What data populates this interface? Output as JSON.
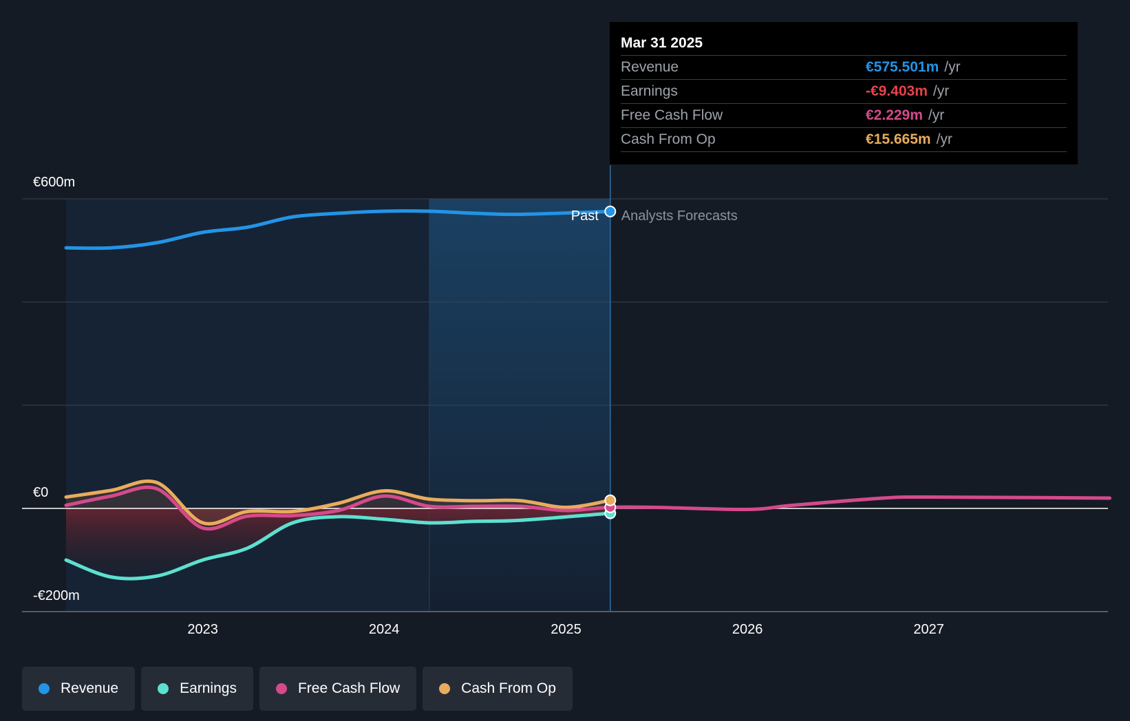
{
  "chart_data": {
    "type": "line",
    "x_range": [
      "2022-04-01",
      "2027-12-31"
    ],
    "x_ticks": [
      "2023",
      "2024",
      "2025",
      "2026",
      "2027"
    ],
    "y_range": [
      -200,
      600
    ],
    "y_ticks": [
      "€600m",
      "€0",
      "-€200m"
    ],
    "y_unit": "€m",
    "divider_date": "2025-03-31",
    "past_label": "Past",
    "forecast_label": "Analysts Forecasts",
    "series": [
      {
        "name": "Revenue",
        "color": "#2394e6",
        "points": [
          [
            "2022-04-01",
            505
          ],
          [
            "2022-07-01",
            505
          ],
          [
            "2022-10-01",
            515
          ],
          [
            "2023-01-01",
            535
          ],
          [
            "2023-04-01",
            545
          ],
          [
            "2023-07-01",
            565
          ],
          [
            "2023-10-01",
            572
          ],
          [
            "2024-01-01",
            576
          ],
          [
            "2024-04-01",
            576
          ],
          [
            "2024-07-01",
            572
          ],
          [
            "2024-10-01",
            570
          ],
          [
            "2025-03-31",
            575.501
          ]
        ]
      },
      {
        "name": "Earnings",
        "color": "#5de0d0",
        "points": [
          [
            "2022-04-01",
            -100
          ],
          [
            "2022-07-01",
            -133
          ],
          [
            "2022-10-01",
            -131
          ],
          [
            "2023-01-01",
            -100
          ],
          [
            "2023-04-01",
            -77
          ],
          [
            "2023-07-01",
            -28
          ],
          [
            "2023-10-01",
            -16
          ],
          [
            "2024-01-01",
            -21
          ],
          [
            "2024-04-01",
            -28
          ],
          [
            "2024-07-01",
            -25
          ],
          [
            "2024-10-01",
            -23
          ],
          [
            "2025-03-31",
            -9.403
          ]
        ]
      },
      {
        "name": "Free Cash Flow",
        "color": "#d44a8c",
        "points": [
          [
            "2022-04-01",
            6
          ],
          [
            "2022-07-01",
            24
          ],
          [
            "2022-10-01",
            38
          ],
          [
            "2023-01-01",
            -38
          ],
          [
            "2023-04-01",
            -15
          ],
          [
            "2023-07-01",
            -14
          ],
          [
            "2023-10-01",
            -4
          ],
          [
            "2024-01-01",
            24
          ],
          [
            "2024-04-01",
            4
          ],
          [
            "2024-07-01",
            4
          ],
          [
            "2024-10-01",
            4
          ],
          [
            "2025-01-01",
            -4
          ],
          [
            "2025-03-31",
            2.229
          ],
          [
            "2025-07-01",
            2
          ],
          [
            "2026-01-01",
            -2
          ],
          [
            "2026-04-01",
            6
          ],
          [
            "2026-10-01",
            20
          ],
          [
            "2027-01-01",
            22
          ],
          [
            "2027-12-31",
            20
          ]
        ]
      },
      {
        "name": "Cash From Op",
        "color": "#e8ac5c",
        "points": [
          [
            "2022-04-01",
            22
          ],
          [
            "2022-07-01",
            35
          ],
          [
            "2022-10-01",
            50
          ],
          [
            "2023-01-01",
            -28
          ],
          [
            "2023-04-01",
            -6
          ],
          [
            "2023-07-01",
            -6
          ],
          [
            "2023-10-01",
            10
          ],
          [
            "2024-01-01",
            34
          ],
          [
            "2024-04-01",
            18
          ],
          [
            "2024-07-01",
            15
          ],
          [
            "2024-10-01",
            15
          ],
          [
            "2025-01-01",
            2
          ],
          [
            "2025-03-31",
            15.665
          ]
        ]
      }
    ]
  },
  "tooltip": {
    "date": "Mar 31 2025",
    "rows": [
      {
        "label": "Revenue",
        "value": "€575.501m",
        "unit": "/yr",
        "color": "#2394e6"
      },
      {
        "label": "Earnings",
        "value": "-€9.403m",
        "unit": "/yr",
        "color": "#e8424c"
      },
      {
        "label": "Free Cash Flow",
        "value": "€2.229m",
        "unit": "/yr",
        "color": "#d44a8c"
      },
      {
        "label": "Cash From Op",
        "value": "€15.665m",
        "unit": "/yr",
        "color": "#e8ac5c"
      }
    ]
  },
  "legend": [
    {
      "label": "Revenue",
      "color": "#2394e6"
    },
    {
      "label": "Earnings",
      "color": "#5de0d0"
    },
    {
      "label": "Free Cash Flow",
      "color": "#d44a8c"
    },
    {
      "label": "Cash From Op",
      "color": "#e8ac5c"
    }
  ]
}
